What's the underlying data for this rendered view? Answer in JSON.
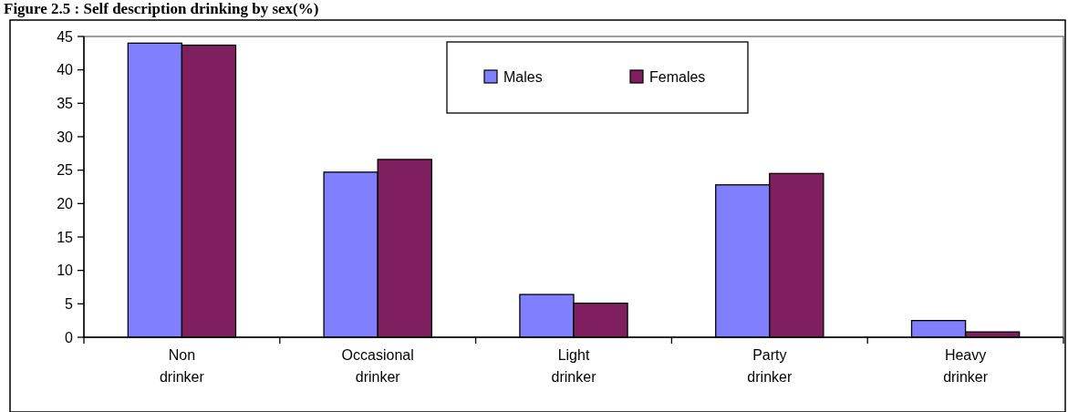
{
  "chart_data": {
    "type": "bar",
    "title": "Figure 2.5 : Self description drinking by sex(%)",
    "categories": [
      "Non drinker",
      "Occasional drinker",
      "Light drinker",
      "Party drinker",
      "Heavy drinker"
    ],
    "series": [
      {
        "name": "Males",
        "color": "#8080ff",
        "values": [
          44.0,
          24.7,
          6.4,
          22.8,
          2.5
        ]
      },
      {
        "name": "Females",
        "color": "#7f1f5f",
        "values": [
          43.7,
          26.6,
          5.1,
          24.5,
          0.8
        ]
      }
    ],
    "ylim": [
      0,
      45
    ],
    "yticks": [
      0,
      5,
      10,
      15,
      20,
      25,
      30,
      35,
      40,
      45
    ],
    "grid": false,
    "legend": "top"
  }
}
